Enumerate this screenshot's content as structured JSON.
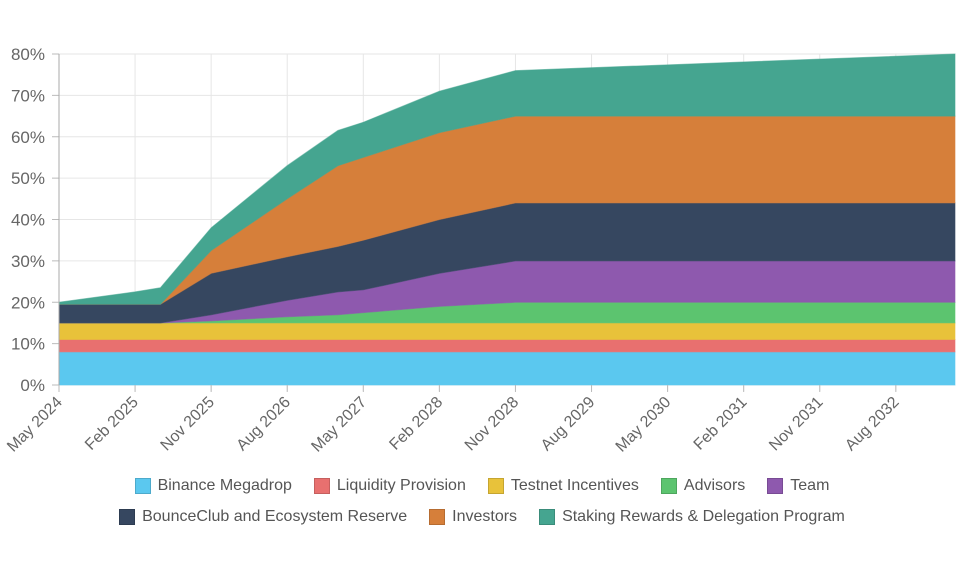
{
  "chart_data": {
    "type": "area",
    "stacked": true,
    "title": "",
    "xlabel": "",
    "ylabel": "",
    "ylim": [
      0,
      80
    ],
    "y_ticks": [
      "0%",
      "10%",
      "20%",
      "30%",
      "40%",
      "50%",
      "60%",
      "70%",
      "80%"
    ],
    "x_ticks": [
      "May 2024",
      "Feb 2025",
      "Nov 2025",
      "Aug 2026",
      "May 2027",
      "Feb 2028",
      "Nov 2028",
      "Aug 2029",
      "May 2030",
      "Feb 2031",
      "Nov 2031",
      "Aug 2032"
    ],
    "x_range": [
      "2024-05",
      "2033-03"
    ],
    "grid": true,
    "legend_placement": "bottom",
    "x": [
      "2024-05",
      "2025-02",
      "2025-05",
      "2025-11",
      "2026-08",
      "2027-02",
      "2027-05",
      "2028-02",
      "2028-11",
      "2033-03"
    ],
    "series": [
      {
        "name": "Binance Megadrop",
        "color": "#5bc8ef",
        "values": [
          8,
          8,
          8,
          8,
          8,
          8,
          8,
          8,
          8,
          8
        ]
      },
      {
        "name": "Liquidity Provision",
        "color": "#e8706f",
        "values": [
          3,
          3,
          3,
          3,
          3,
          3,
          3,
          3,
          3,
          3
        ]
      },
      {
        "name": "Testnet Incentives",
        "color": "#e8c23a",
        "values": [
          4,
          4,
          4,
          4,
          4,
          4,
          4,
          4,
          4,
          4
        ]
      },
      {
        "name": "Advisors",
        "color": "#5cc46f",
        "values": [
          0,
          0,
          0,
          0.5,
          1.5,
          2,
          2.5,
          4,
          5,
          5
        ]
      },
      {
        "name": "Team",
        "color": "#8e59ae",
        "values": [
          0,
          0,
          0,
          1.5,
          4,
          5.5,
          5.5,
          8,
          10,
          10
        ]
      },
      {
        "name": "BounceClub and Ecosystem Reserve",
        "color": "#364760",
        "values": [
          4.5,
          4.5,
          4.5,
          10,
          10.5,
          11,
          12,
          13,
          14,
          14
        ]
      },
      {
        "name": "Investors",
        "color": "#d67f3a",
        "values": [
          0,
          0,
          0,
          5.5,
          14,
          19.5,
          20,
          21,
          21,
          21
        ]
      },
      {
        "name": "Staking Rewards & Delegation Program",
        "color": "#45a590",
        "values": [
          0.5,
          3,
          4,
          5.5,
          8,
          8.5,
          8.5,
          10,
          11,
          15
        ]
      }
    ]
  }
}
